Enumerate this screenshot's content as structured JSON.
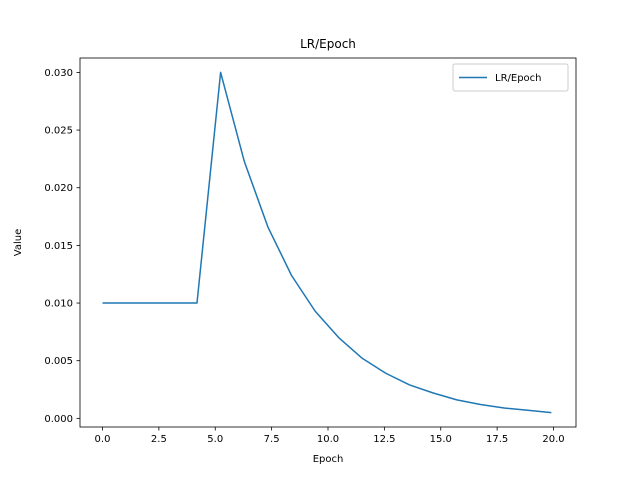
{
  "chart_data": {
    "type": "line",
    "title": "LR/Epoch",
    "xlabel": "Epoch",
    "ylabel": "Value",
    "xlim": [
      -0.9976,
      20.9976
    ],
    "ylim": [
      -0.00075,
      0.03125
    ],
    "xticks": [
      "0.0",
      "2.5",
      "5.0",
      "7.5",
      "10.0",
      "12.5",
      "15.0",
      "17.5",
      "20.0"
    ],
    "yticks": [
      "0.000",
      "0.005",
      "0.010",
      "0.015",
      "0.020",
      "0.025",
      "0.030"
    ],
    "legend_position": "top-right",
    "grid": false,
    "series": [
      {
        "name": "LR/Epoch",
        "color": "#1f77b4",
        "x": [
          0.0,
          1.0476,
          2.0952,
          3.1429,
          4.1905,
          5.2381,
          6.2857,
          7.3333,
          8.381,
          9.4286,
          10.4762,
          11.5238,
          12.5714,
          13.619,
          14.6667,
          15.7143,
          16.7619,
          17.8095,
          18.8571,
          19.9048
        ],
        "y": [
          0.01,
          0.01,
          0.01,
          0.01,
          0.01,
          0.03,
          0.0223,
          0.0166,
          0.0124,
          0.0093,
          0.007,
          0.0052,
          0.0039,
          0.0029,
          0.0022,
          0.0016,
          0.0012,
          0.0009,
          0.0007,
          0.0005
        ]
      }
    ]
  }
}
